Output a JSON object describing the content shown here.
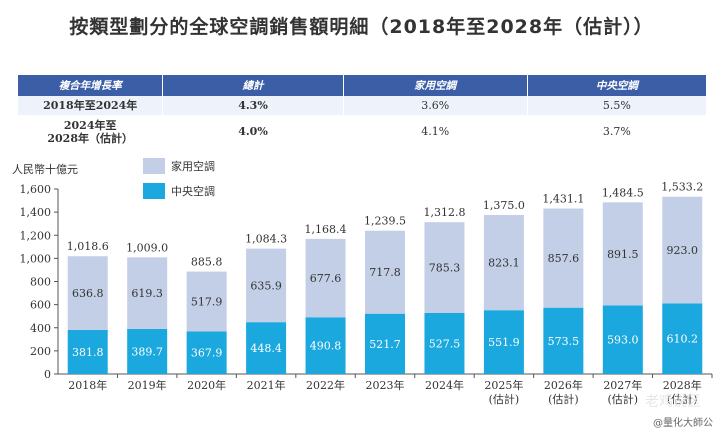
{
  "title": "按類型劃分的全球空調銷售額明細（2018年至2028年（估計））",
  "cagr_table": {
    "headers": [
      "複合年增長率",
      "總計",
      "家用空調",
      "中央空調"
    ],
    "rows": [
      {
        "period_lines": [
          "2018年至2024年"
        ],
        "total": "4.3%",
        "household": "3.6%",
        "central": "5.5%"
      },
      {
        "period_lines": [
          "2024年至",
          "2028年（估計）"
        ],
        "total": "4.0%",
        "household": "4.1%",
        "central": "3.7%"
      }
    ]
  },
  "colors": {
    "household": "#c3cfe6",
    "central": "#1aa8de",
    "header_bg": "#3b5ea6"
  },
  "watermark": "@量化大師公",
  "watermark_faint": "老鸡说区",
  "chart_data": {
    "type": "bar",
    "stacked": true,
    "ylabel": "人民幣十億元",
    "ylim": [
      0,
      1600
    ],
    "yticks": [
      0,
      200,
      400,
      600,
      800,
      1000,
      1200,
      1400,
      1600
    ],
    "ytick_labels": [
      "0",
      "200",
      "400",
      "600",
      "800",
      "1,000",
      "1,200",
      "1,400",
      "1,600"
    ],
    "legend_position": "top-left",
    "categories": [
      [
        "2018年"
      ],
      [
        "2019年"
      ],
      [
        "2020年"
      ],
      [
        "2021年"
      ],
      [
        "2022年"
      ],
      [
        "2023年"
      ],
      [
        "2024年"
      ],
      [
        "2025年",
        "(估計)"
      ],
      [
        "2026年",
        "(估計)"
      ],
      [
        "2027年",
        "(估計)"
      ],
      [
        "2028年",
        "(估計)"
      ]
    ],
    "series": [
      {
        "name": "中央空調",
        "color": "#1aa8de",
        "values": [
          381.8,
          389.7,
          367.9,
          448.4,
          490.8,
          521.7,
          527.5,
          551.9,
          573.5,
          593.0,
          610.2
        ],
        "labels": [
          "381.8",
          "389.7",
          "367.9",
          "448.4",
          "490.8",
          "521.7",
          "527.5",
          "551.9",
          "573.5",
          "593.0",
          "610.2"
        ]
      },
      {
        "name": "家用空調",
        "color": "#c3cfe6",
        "values": [
          636.8,
          619.3,
          517.9,
          635.9,
          677.6,
          717.8,
          785.3,
          823.1,
          857.6,
          891.5,
          923.0
        ],
        "labels": [
          "636.8",
          "619.3",
          "517.9",
          "635.9",
          "677.6",
          "717.8",
          "785.3",
          "823.1",
          "857.6",
          "891.5",
          "923.0"
        ]
      }
    ],
    "totals": [
      1018.6,
      1009.0,
      885.8,
      1084.3,
      1168.4,
      1239.5,
      1312.8,
      1375.0,
      1431.1,
      1484.5,
      1533.2
    ],
    "total_labels": [
      "1,018.6",
      "1,009.0",
      "885.8",
      "1,084.3",
      "1,168.4",
      "1,239.5",
      "1,312.8",
      "1,375.0",
      "1,431.1",
      "1,484.5",
      "1,533.2"
    ]
  }
}
